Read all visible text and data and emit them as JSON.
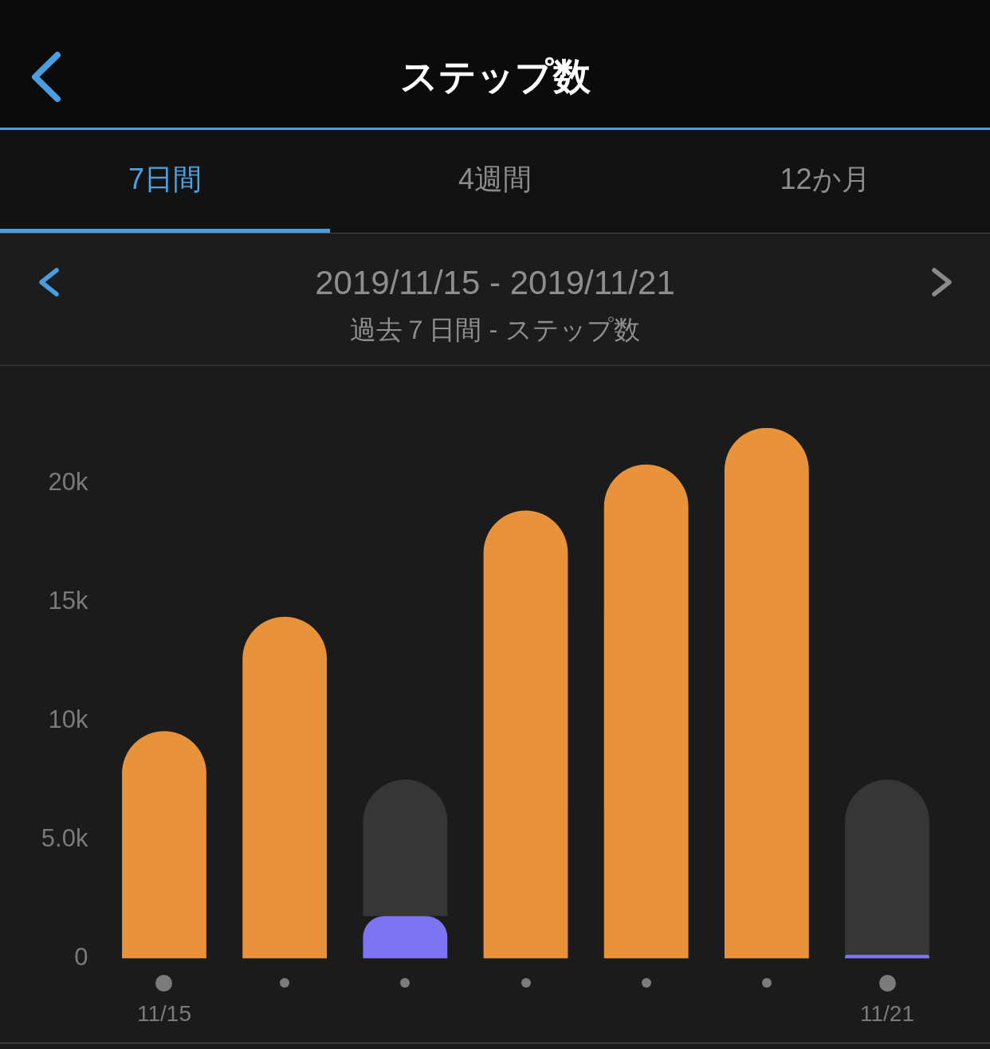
{
  "chart_data": {
    "type": "bar",
    "title": "ステップ数",
    "subtitle": "2019/11/15 - 2019/11/21",
    "annotations": [
      "7日間",
      "4週間",
      "12か月",
      "過去７日間 - ステップ数"
    ],
    "categories": [
      "11/15",
      null,
      null,
      null,
      null,
      null,
      "11/21"
    ],
    "series": [
      {
        "values": [
          9570,
          14390,
          1790,
          18860,
          20800,
          22340,
          160
        ],
        "colors": [
          "#e8933a",
          "#e8933a",
          "#7d74f4",
          "#e8933a",
          "#e8933a",
          "#e8933a",
          "#7d74f4"
        ]
      },
      {
        "values": [
          null,
          null,
          5740,
          null,
          null,
          null,
          7370
        ],
        "color": "#363636"
      }
    ],
    "stacked": true,
    "ylim": [
      0,
      22340
    ],
    "yticks": [
      0,
      {
        "value": 5000,
        "label": "5.0k"
      },
      {
        "value": 10000,
        "label": "10k"
      },
      {
        "value": 15000,
        "label": "15k"
      },
      {
        "value": 20000,
        "label": "20k"
      }
    ]
  }
}
